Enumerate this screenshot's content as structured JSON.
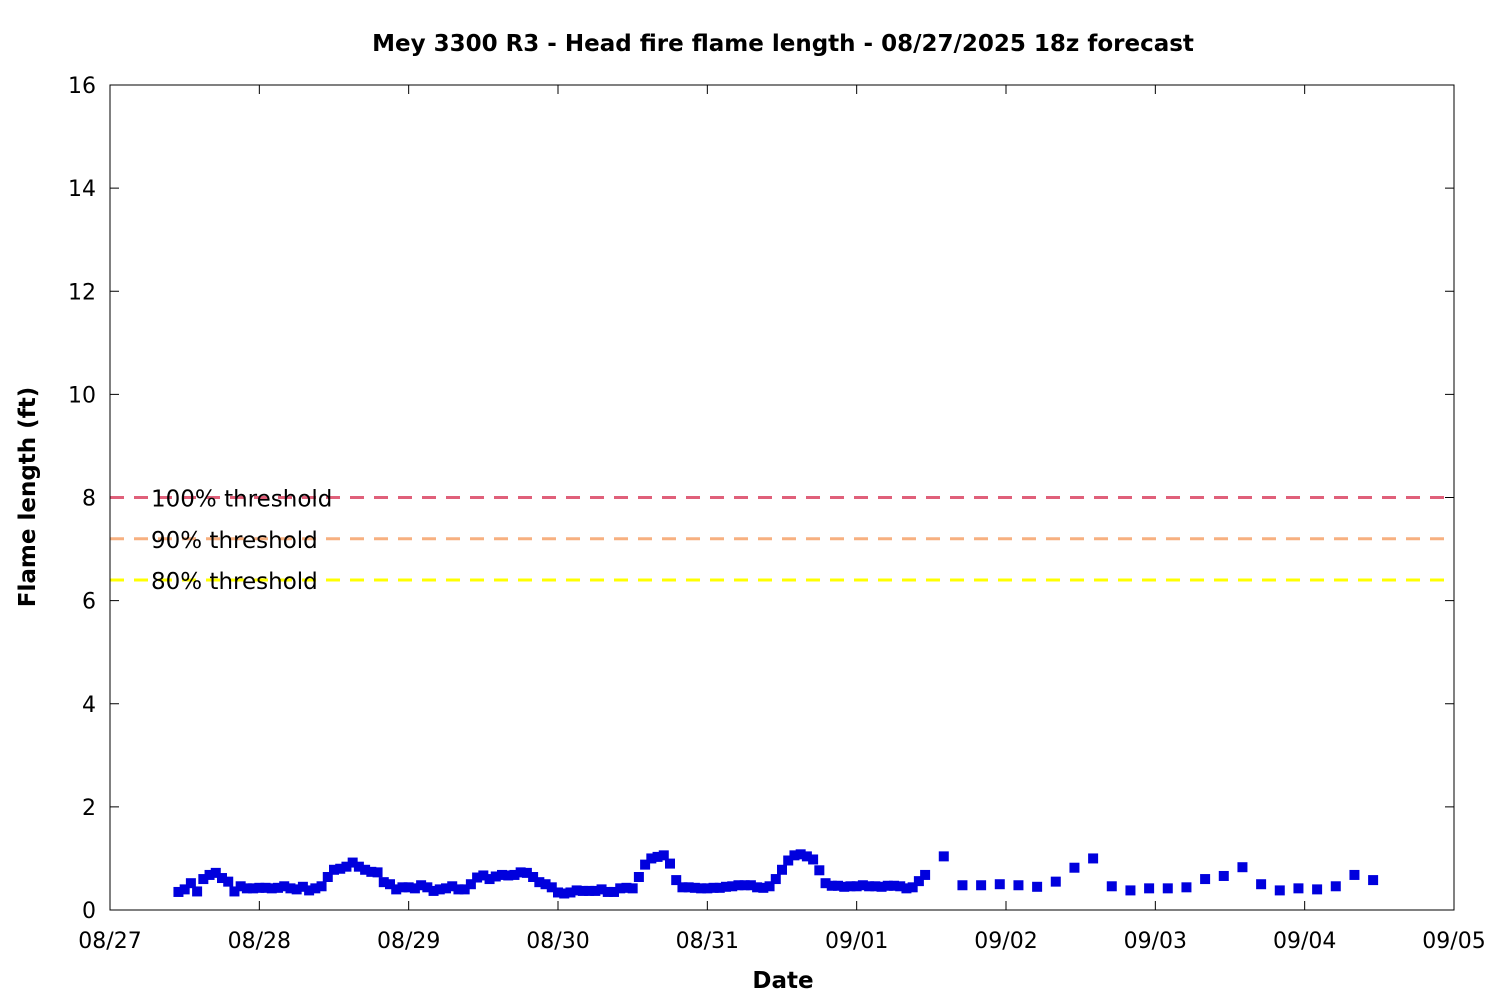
{
  "chart_data": {
    "type": "scatter",
    "title": "Mey 3300 R3 - Head fire flame length - 08/27/2025 18z forecast",
    "xlabel": "Date",
    "ylabel": "Flame length (ft)",
    "xlim": [
      "2025-08-27T00:00",
      "2025-09-05T00:00"
    ],
    "ylim": [
      0,
      16
    ],
    "x_ticks": [
      "08/27",
      "08/28",
      "08/29",
      "08/30",
      "08/31",
      "09/01",
      "09/02",
      "09/03",
      "09/04",
      "09/05"
    ],
    "y_ticks": [
      0,
      2,
      4,
      6,
      8,
      10,
      12,
      14,
      16
    ],
    "grid": false,
    "series": [
      {
        "color": "#0000dd",
        "marker": "square",
        "points": [
          [
            "2025-08-27T11:00",
            0.35
          ],
          [
            "2025-08-27T12:00",
            0.4
          ],
          [
            "2025-08-27T13:00",
            0.52
          ],
          [
            "2025-08-27T14:00",
            0.36
          ],
          [
            "2025-08-27T15:00",
            0.6
          ],
          [
            "2025-08-27T16:00",
            0.68
          ],
          [
            "2025-08-27T17:00",
            0.72
          ],
          [
            "2025-08-27T18:00",
            0.62
          ],
          [
            "2025-08-27T19:00",
            0.55
          ],
          [
            "2025-08-27T20:00",
            0.36
          ],
          [
            "2025-08-27T21:00",
            0.46
          ],
          [
            "2025-08-27T22:00",
            0.42
          ],
          [
            "2025-08-27T23:00",
            0.42
          ],
          [
            "2025-08-28T00:00",
            0.43
          ],
          [
            "2025-08-28T01:00",
            0.43
          ],
          [
            "2025-08-28T02:00",
            0.42
          ],
          [
            "2025-08-28T03:00",
            0.43
          ],
          [
            "2025-08-28T04:00",
            0.46
          ],
          [
            "2025-08-28T05:00",
            0.42
          ],
          [
            "2025-08-28T06:00",
            0.4
          ],
          [
            "2025-08-28T07:00",
            0.45
          ],
          [
            "2025-08-28T08:00",
            0.38
          ],
          [
            "2025-08-28T09:00",
            0.42
          ],
          [
            "2025-08-28T10:00",
            0.46
          ],
          [
            "2025-08-28T11:00",
            0.64
          ],
          [
            "2025-08-28T12:00",
            0.78
          ],
          [
            "2025-08-28T13:00",
            0.8
          ],
          [
            "2025-08-28T14:00",
            0.84
          ],
          [
            "2025-08-28T15:00",
            0.92
          ],
          [
            "2025-08-28T16:00",
            0.84
          ],
          [
            "2025-08-28T17:00",
            0.78
          ],
          [
            "2025-08-28T18:00",
            0.74
          ],
          [
            "2025-08-28T19:00",
            0.73
          ],
          [
            "2025-08-28T20:00",
            0.54
          ],
          [
            "2025-08-28T21:00",
            0.5
          ],
          [
            "2025-08-28T22:00",
            0.4
          ],
          [
            "2025-08-28T23:00",
            0.44
          ],
          [
            "2025-08-29T00:00",
            0.44
          ],
          [
            "2025-08-29T01:00",
            0.42
          ],
          [
            "2025-08-29T02:00",
            0.48
          ],
          [
            "2025-08-29T03:00",
            0.44
          ],
          [
            "2025-08-29T04:00",
            0.37
          ],
          [
            "2025-08-29T05:00",
            0.4
          ],
          [
            "2025-08-29T06:00",
            0.42
          ],
          [
            "2025-08-29T07:00",
            0.46
          ],
          [
            "2025-08-29T08:00",
            0.4
          ],
          [
            "2025-08-29T09:00",
            0.4
          ],
          [
            "2025-08-29T10:00",
            0.5
          ],
          [
            "2025-08-29T11:00",
            0.63
          ],
          [
            "2025-08-29T12:00",
            0.67
          ],
          [
            "2025-08-29T13:00",
            0.6
          ],
          [
            "2025-08-29T14:00",
            0.65
          ],
          [
            "2025-08-29T15:00",
            0.68
          ],
          [
            "2025-08-29T16:00",
            0.67
          ],
          [
            "2025-08-29T17:00",
            0.68
          ],
          [
            "2025-08-29T18:00",
            0.73
          ],
          [
            "2025-08-29T19:00",
            0.72
          ],
          [
            "2025-08-29T20:00",
            0.64
          ],
          [
            "2025-08-29T21:00",
            0.54
          ],
          [
            "2025-08-29T22:00",
            0.5
          ],
          [
            "2025-08-29T23:00",
            0.44
          ],
          [
            "2025-08-30T00:00",
            0.34
          ],
          [
            "2025-08-30T01:00",
            0.32
          ],
          [
            "2025-08-30T02:00",
            0.34
          ],
          [
            "2025-08-30T03:00",
            0.38
          ],
          [
            "2025-08-30T04:00",
            0.37
          ],
          [
            "2025-08-30T05:00",
            0.37
          ],
          [
            "2025-08-30T06:00",
            0.37
          ],
          [
            "2025-08-30T07:00",
            0.4
          ],
          [
            "2025-08-30T08:00",
            0.35
          ],
          [
            "2025-08-30T09:00",
            0.35
          ],
          [
            "2025-08-30T10:00",
            0.42
          ],
          [
            "2025-08-30T11:00",
            0.43
          ],
          [
            "2025-08-30T12:00",
            0.42
          ],
          [
            "2025-08-30T13:00",
            0.64
          ],
          [
            "2025-08-30T14:00",
            0.88
          ],
          [
            "2025-08-30T15:00",
            1.0
          ],
          [
            "2025-08-30T16:00",
            1.03
          ],
          [
            "2025-08-30T17:00",
            1.06
          ],
          [
            "2025-08-30T18:00",
            0.9
          ],
          [
            "2025-08-30T19:00",
            0.58
          ],
          [
            "2025-08-30T20:00",
            0.44
          ],
          [
            "2025-08-30T21:00",
            0.44
          ],
          [
            "2025-08-30T22:00",
            0.43
          ],
          [
            "2025-08-30T23:00",
            0.42
          ],
          [
            "2025-08-31T00:00",
            0.42
          ],
          [
            "2025-08-31T01:00",
            0.43
          ],
          [
            "2025-08-31T02:00",
            0.43
          ],
          [
            "2025-08-31T03:00",
            0.45
          ],
          [
            "2025-08-31T04:00",
            0.46
          ],
          [
            "2025-08-31T05:00",
            0.48
          ],
          [
            "2025-08-31T06:00",
            0.48
          ],
          [
            "2025-08-31T07:00",
            0.48
          ],
          [
            "2025-08-31T08:00",
            0.44
          ],
          [
            "2025-08-31T09:00",
            0.43
          ],
          [
            "2025-08-31T10:00",
            0.46
          ],
          [
            "2025-08-31T11:00",
            0.6
          ],
          [
            "2025-08-31T12:00",
            0.78
          ],
          [
            "2025-08-31T13:00",
            0.96
          ],
          [
            "2025-08-31T14:00",
            1.06
          ],
          [
            "2025-08-31T15:00",
            1.08
          ],
          [
            "2025-08-31T16:00",
            1.04
          ],
          [
            "2025-08-31T17:00",
            0.98
          ],
          [
            "2025-08-31T18:00",
            0.77
          ],
          [
            "2025-08-31T19:00",
            0.52
          ],
          [
            "2025-08-31T20:00",
            0.47
          ],
          [
            "2025-08-31T21:00",
            0.47
          ],
          [
            "2025-08-31T22:00",
            0.45
          ],
          [
            "2025-08-31T23:00",
            0.46
          ],
          [
            "2025-09-01T00:00",
            0.46
          ],
          [
            "2025-09-01T01:00",
            0.48
          ],
          [
            "2025-09-01T02:00",
            0.46
          ],
          [
            "2025-09-01T03:00",
            0.46
          ],
          [
            "2025-09-01T04:00",
            0.45
          ],
          [
            "2025-09-01T05:00",
            0.47
          ],
          [
            "2025-09-01T06:00",
            0.47
          ],
          [
            "2025-09-01T07:00",
            0.46
          ],
          [
            "2025-09-01T08:00",
            0.42
          ],
          [
            "2025-09-01T09:00",
            0.44
          ],
          [
            "2025-09-01T10:00",
            0.56
          ],
          [
            "2025-09-01T11:00",
            0.68
          ],
          [
            "2025-09-01T14:00",
            1.04
          ],
          [
            "2025-09-01T17:00",
            0.48
          ],
          [
            "2025-09-01T20:00",
            0.48
          ],
          [
            "2025-09-01T23:00",
            0.5
          ],
          [
            "2025-09-02T02:00",
            0.48
          ],
          [
            "2025-09-02T05:00",
            0.45
          ],
          [
            "2025-09-02T08:00",
            0.55
          ],
          [
            "2025-09-02T11:00",
            0.82
          ],
          [
            "2025-09-02T14:00",
            1.0
          ],
          [
            "2025-09-02T17:00",
            0.46
          ],
          [
            "2025-09-02T20:00",
            0.38
          ],
          [
            "2025-09-02T23:00",
            0.42
          ],
          [
            "2025-09-03T02:00",
            0.42
          ],
          [
            "2025-09-03T05:00",
            0.44
          ],
          [
            "2025-09-03T08:00",
            0.6
          ],
          [
            "2025-09-03T11:00",
            0.66
          ],
          [
            "2025-09-03T14:00",
            0.83
          ],
          [
            "2025-09-03T17:00",
            0.5
          ],
          [
            "2025-09-03T20:00",
            0.38
          ],
          [
            "2025-09-03T23:00",
            0.42
          ],
          [
            "2025-09-04T02:00",
            0.4
          ],
          [
            "2025-09-04T05:00",
            0.46
          ],
          [
            "2025-09-04T08:00",
            0.68
          ],
          [
            "2025-09-04T11:00",
            0.58
          ]
        ]
      }
    ],
    "thresholds": [
      {
        "label": "100% threshold",
        "value": 8.0,
        "color": "#e0607a",
        "style": "dashed"
      },
      {
        "label": "90% threshold",
        "value": 7.2,
        "color": "#f7b080",
        "style": "dashed"
      },
      {
        "label": "80% threshold",
        "value": 6.4,
        "color": "#ffff00",
        "style": "dashed"
      }
    ]
  }
}
